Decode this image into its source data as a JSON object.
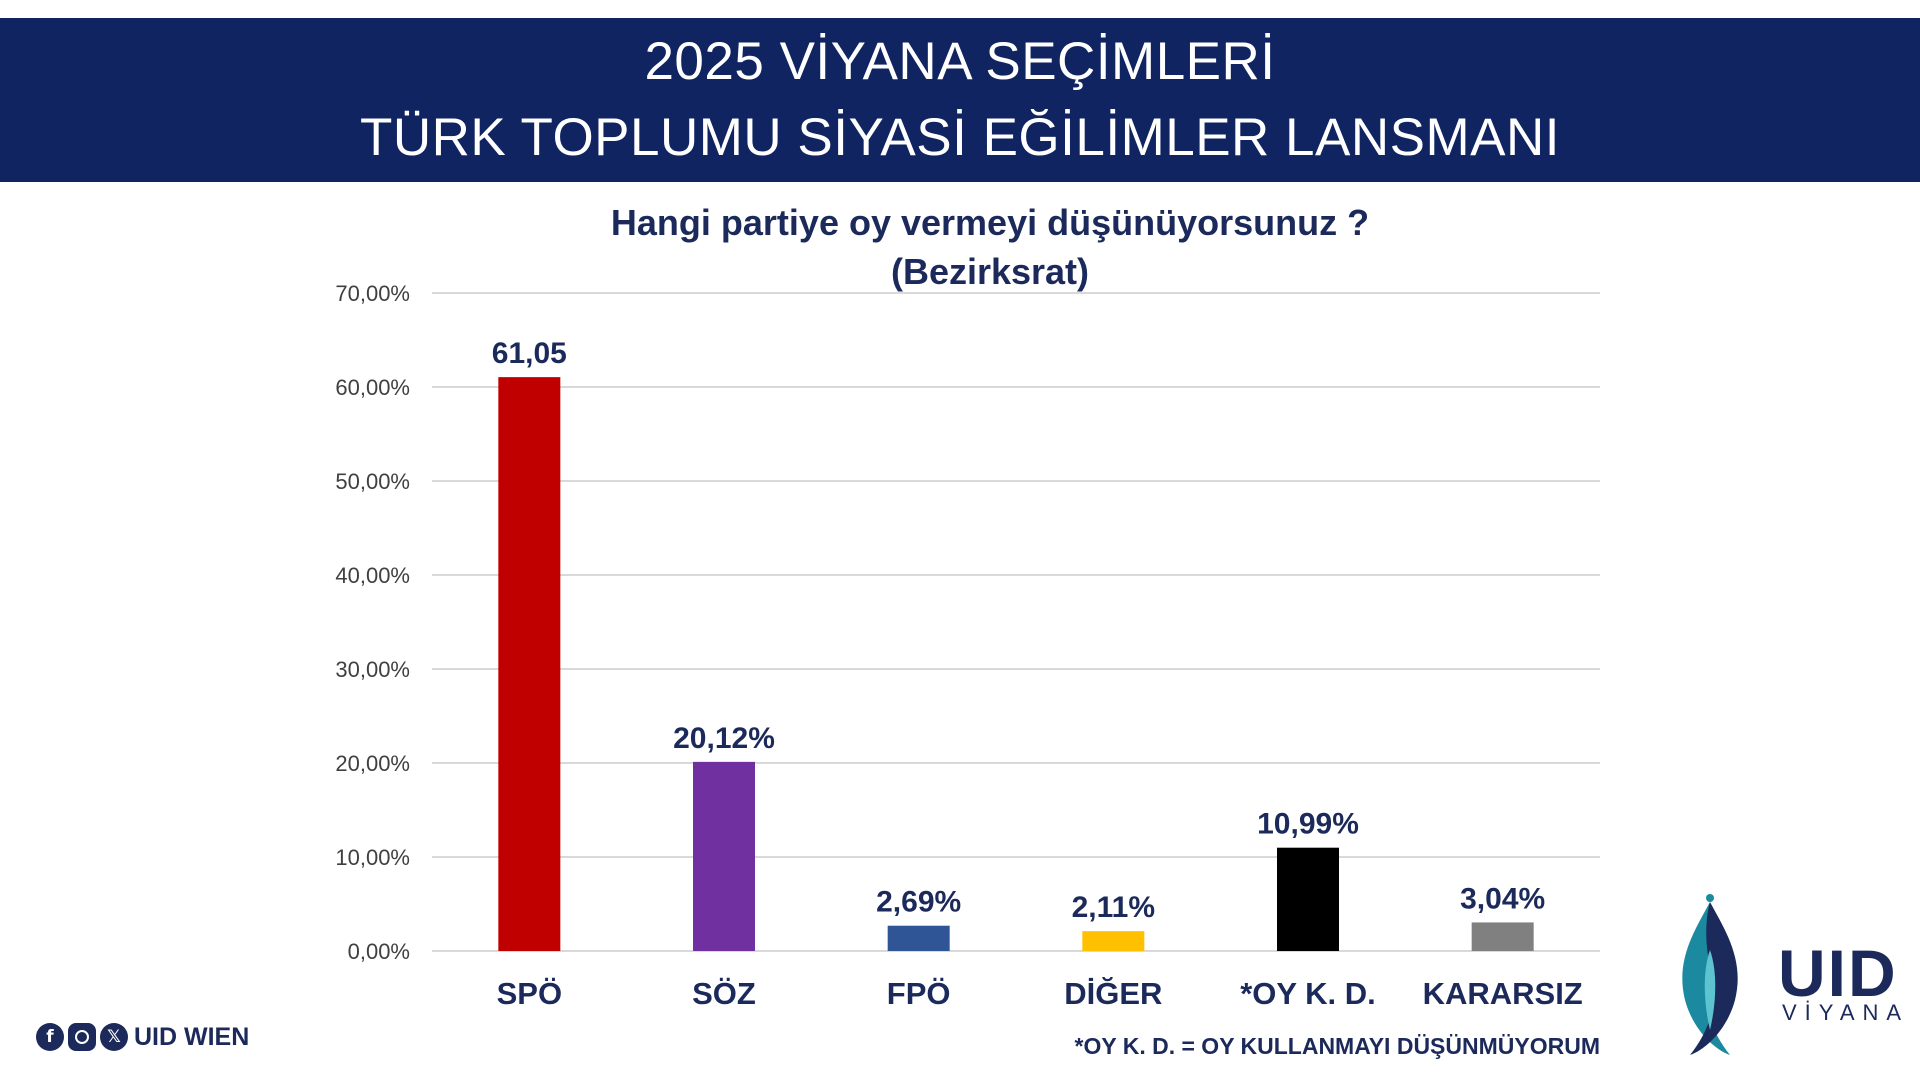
{
  "header": {
    "line1": "2025 VİYANA SEÇİMLERİ",
    "line2": "TÜRK TOPLUMU SİYASİ EĞİLİMLER LANSMANI"
  },
  "chart_data": {
    "type": "bar",
    "title": "Hangi partiye oy vermeyi düşünüyorsunuz ?",
    "subtitle": "(Bezirksrat)",
    "categories": [
      "SPÖ",
      "SÖZ",
      "FPÖ",
      "DİĞER",
      "*OY K. D.",
      "KARARSIZ"
    ],
    "values": [
      61.05,
      20.12,
      2.69,
      2.11,
      10.99,
      3.04
    ],
    "data_labels": [
      "61,05",
      "20,12%",
      "2,69%",
      "2,11%",
      "10,99%",
      "3,04%"
    ],
    "colors": [
      "#c00000",
      "#7030a0",
      "#2f5597",
      "#ffc000",
      "#000000",
      "#808080"
    ],
    "ylim": [
      0,
      70
    ],
    "yticks": [
      "0,00%",
      "10,00%",
      "20,00%",
      "30,00%",
      "40,00%",
      "50,00%",
      "60,00%",
      "70,00%"
    ],
    "grid": true,
    "legend": "none"
  },
  "footnote": "*OY K. D.  =  OY KULLANMAYI DÜŞÜNMÜYORUM",
  "social": {
    "icons": [
      "facebook-icon",
      "instagram-icon",
      "x-icon"
    ],
    "name": "UID WIEN"
  },
  "logo": {
    "text": "UID",
    "subtext": "VİYANA"
  }
}
